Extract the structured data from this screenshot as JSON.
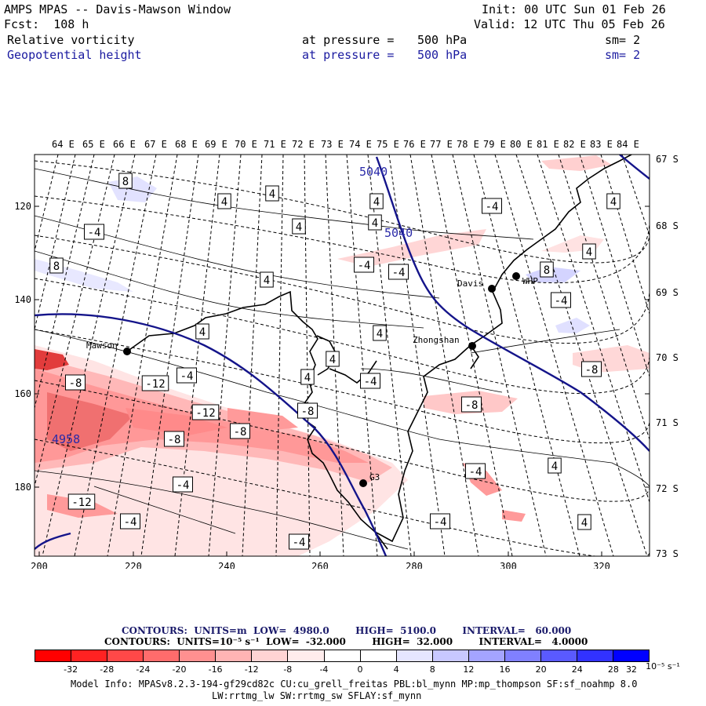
{
  "header": {
    "title": "AMPS MPAS -- Davis-Mawson Window",
    "fcst": "Fcst:  108 h",
    "init": "Init: 00 UTC Sun 01 Feb 26",
    "valid": "Valid: 12 UTC Thu 05 Feb 26",
    "field1": {
      "name": "Relative vorticity",
      "pressure_label": "at pressure =",
      "pressure": "500 hPa",
      "sm": "sm= 2"
    },
    "field2": {
      "name": "Geopotential height",
      "pressure_label": "at pressure =",
      "pressure": "500 hPa",
      "sm": "sm= 2"
    }
  },
  "map": {
    "top_lon_labels": [
      "64 E",
      "65 E",
      "66 E",
      "67 E",
      "68 E",
      "69 E",
      "70 E",
      "71 E",
      "72 E",
      "73 E",
      "74 E",
      "75 E",
      "76 E",
      "77 E",
      "78 E",
      "79 E",
      "80 E",
      "81 E",
      "82 E",
      "83 E",
      "84 E"
    ],
    "right_lat_labels": [
      "67 S",
      "68 S",
      "69 S",
      "70 S",
      "71 S",
      "72 S",
      "73 S"
    ],
    "left_y_labels": [
      "120",
      "140",
      "160",
      "180"
    ],
    "bottom_x_labels": [
      "200",
      "220",
      "240",
      "260",
      "280",
      "300",
      "320"
    ],
    "stations": [
      "Mawson",
      "Davis",
      "WHP",
      "Zhongshan",
      "G3"
    ],
    "height_labels": [
      "5040",
      "5040",
      "4958"
    ],
    "vort_labels": [
      "8",
      "4",
      "-4",
      "4",
      "4",
      "-4",
      "8",
      "-4",
      "4",
      "-4",
      "4",
      "8",
      "4",
      "-4",
      "4",
      "4",
      "-8",
      "-12",
      "-4",
      "4",
      "-4",
      "-12",
      "-8",
      "-8",
      "-8",
      "4",
      "-8",
      "-4",
      "-12",
      "-4",
      "-4",
      "-4",
      "-4",
      "4",
      "4",
      "4",
      "4",
      "-8"
    ]
  },
  "contours": {
    "line1": "CONTOURS:  UNITS=m  LOW=  4980.0        HIGH=  5100.0        INTERVAL=   60.000",
    "line2": "CONTOURS:  UNITS=10⁻⁵ s⁻¹  LOW=  -32.000        HIGH=  32.000        INTERVAL=   4.0000"
  },
  "colorbar": {
    "colors": [
      "#ff0000",
      "#ff2222",
      "#ff4848",
      "#ff6c6c",
      "#ff9090",
      "#ffb4b4",
      "#ffd4d4",
      "#ffecec",
      "#ffffff",
      "#ffffff",
      "#e6e6ff",
      "#c8c8ff",
      "#a4a4ff",
      "#8080ff",
      "#5a5aff",
      "#3232ff",
      "#0000ff"
    ],
    "labels": [
      "-32",
      "-28",
      "-24",
      "-20",
      "-16",
      "-12",
      "-8",
      "-4",
      "0",
      "4",
      "8",
      "12",
      "16",
      "20",
      "24",
      "28",
      "32"
    ],
    "unit": "10⁻⁵ s⁻¹"
  },
  "footer": {
    "line1": "Model Info: MPASv8.2.3-194-gf29cd82c CU:cu_grell_freitas PBL:bl_mynn MP:mp_thompson SF:sf_noahmp 8.0",
    "line2": "LW:rrtmg_lw SW:rrtmg_sw SFLAY:sf_mynn"
  }
}
